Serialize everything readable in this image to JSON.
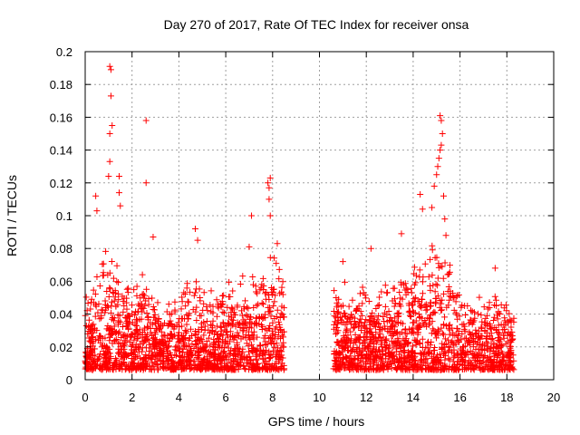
{
  "chart_data": {
    "type": "scatter",
    "title": "Day 270 of 2017, Rate Of TEC Index for receiver onsa",
    "xlabel": "GPS time / hours",
    "ylabel": "ROTI / TECUs",
    "xlim": [
      0,
      20
    ],
    "ylim": [
      0,
      0.2
    ],
    "x_ticks": [
      0,
      2,
      4,
      6,
      8,
      10,
      12,
      14,
      16,
      18,
      20
    ],
    "x_tick_labels": [
      "0",
      "2",
      "4",
      "6",
      "8",
      "10",
      "12",
      "14",
      "16",
      "18",
      "20"
    ],
    "y_ticks": [
      0,
      0.02,
      0.04,
      0.06,
      0.08,
      0.1,
      0.12,
      0.14,
      0.16,
      0.18,
      0.2
    ],
    "y_tick_labels": [
      "0",
      "0.02",
      "0.04",
      "0.06",
      "0.08",
      "0.1",
      "0.12",
      "0.14",
      "0.16",
      "0.18",
      "0.2"
    ],
    "grid": true,
    "marker": "plus",
    "color": "#ff0000",
    "data_segments": [
      {
        "x_start": 0.0,
        "x_end": 8.5
      },
      {
        "x_start": 10.6,
        "x_end": 18.3
      }
    ],
    "envelope": [
      [
        0.0,
        0.045
      ],
      [
        0.5,
        0.06
      ],
      [
        1.0,
        0.08
      ],
      [
        1.5,
        0.06
      ],
      [
        2.0,
        0.055
      ],
      [
        2.5,
        0.06
      ],
      [
        3.0,
        0.055
      ],
      [
        3.5,
        0.045
      ],
      [
        4.0,
        0.05
      ],
      [
        4.5,
        0.06
      ],
      [
        5.0,
        0.055
      ],
      [
        5.5,
        0.05
      ],
      [
        6.0,
        0.055
      ],
      [
        6.5,
        0.06
      ],
      [
        7.0,
        0.065
      ],
      [
        7.5,
        0.06
      ],
      [
        8.0,
        0.075
      ],
      [
        8.5,
        0.06
      ],
      [
        10.6,
        0.055
      ],
      [
        11.0,
        0.055
      ],
      [
        11.5,
        0.05
      ],
      [
        12.0,
        0.055
      ],
      [
        12.5,
        0.05
      ],
      [
        13.0,
        0.055
      ],
      [
        13.5,
        0.06
      ],
      [
        14.0,
        0.065
      ],
      [
        14.5,
        0.075
      ],
      [
        15.0,
        0.085
      ],
      [
        15.3,
        0.08
      ],
      [
        15.7,
        0.06
      ],
      [
        16.0,
        0.05
      ],
      [
        16.5,
        0.05
      ],
      [
        17.0,
        0.045
      ],
      [
        17.5,
        0.05
      ],
      [
        18.0,
        0.045
      ],
      [
        18.3,
        0.045
      ]
    ],
    "peaks": [
      {
        "x": 0.45,
        "y": 0.112
      },
      {
        "x": 0.5,
        "y": 0.103
      },
      {
        "x": 1.05,
        "y": 0.191
      },
      {
        "x": 1.1,
        "y": 0.189
      },
      {
        "x": 1.1,
        "y": 0.173
      },
      {
        "x": 1.15,
        "y": 0.155
      },
      {
        "x": 1.05,
        "y": 0.15
      },
      {
        "x": 1.05,
        "y": 0.133
      },
      {
        "x": 1.0,
        "y": 0.124
      },
      {
        "x": 1.45,
        "y": 0.124
      },
      {
        "x": 1.45,
        "y": 0.114
      },
      {
        "x": 1.5,
        "y": 0.106
      },
      {
        "x": 2.6,
        "y": 0.158
      },
      {
        "x": 2.6,
        "y": 0.12
      },
      {
        "x": 2.9,
        "y": 0.087
      },
      {
        "x": 4.7,
        "y": 0.092
      },
      {
        "x": 4.8,
        "y": 0.085
      },
      {
        "x": 7.1,
        "y": 0.1
      },
      {
        "x": 7.0,
        "y": 0.081
      },
      {
        "x": 7.8,
        "y": 0.12
      },
      {
        "x": 7.85,
        "y": 0.117
      },
      {
        "x": 7.9,
        "y": 0.123
      },
      {
        "x": 7.85,
        "y": 0.11
      },
      {
        "x": 7.9,
        "y": 0.1
      },
      {
        "x": 8.2,
        "y": 0.083
      },
      {
        "x": 11.0,
        "y": 0.072
      },
      {
        "x": 12.2,
        "y": 0.08
      },
      {
        "x": 13.5,
        "y": 0.089
      },
      {
        "x": 14.3,
        "y": 0.113
      },
      {
        "x": 14.4,
        "y": 0.104
      },
      {
        "x": 14.8,
        "y": 0.105
      },
      {
        "x": 14.9,
        "y": 0.118
      },
      {
        "x": 15.0,
        "y": 0.125
      },
      {
        "x": 15.05,
        "y": 0.13
      },
      {
        "x": 15.1,
        "y": 0.135
      },
      {
        "x": 15.15,
        "y": 0.14
      },
      {
        "x": 15.2,
        "y": 0.143
      },
      {
        "x": 15.15,
        "y": 0.161
      },
      {
        "x": 15.2,
        "y": 0.158
      },
      {
        "x": 15.25,
        "y": 0.15
      },
      {
        "x": 15.3,
        "y": 0.112
      },
      {
        "x": 15.35,
        "y": 0.098
      },
      {
        "x": 15.4,
        "y": 0.088
      },
      {
        "x": 17.5,
        "y": 0.068
      }
    ],
    "baseline": 0.006,
    "point_density_per_hour": 180
  }
}
